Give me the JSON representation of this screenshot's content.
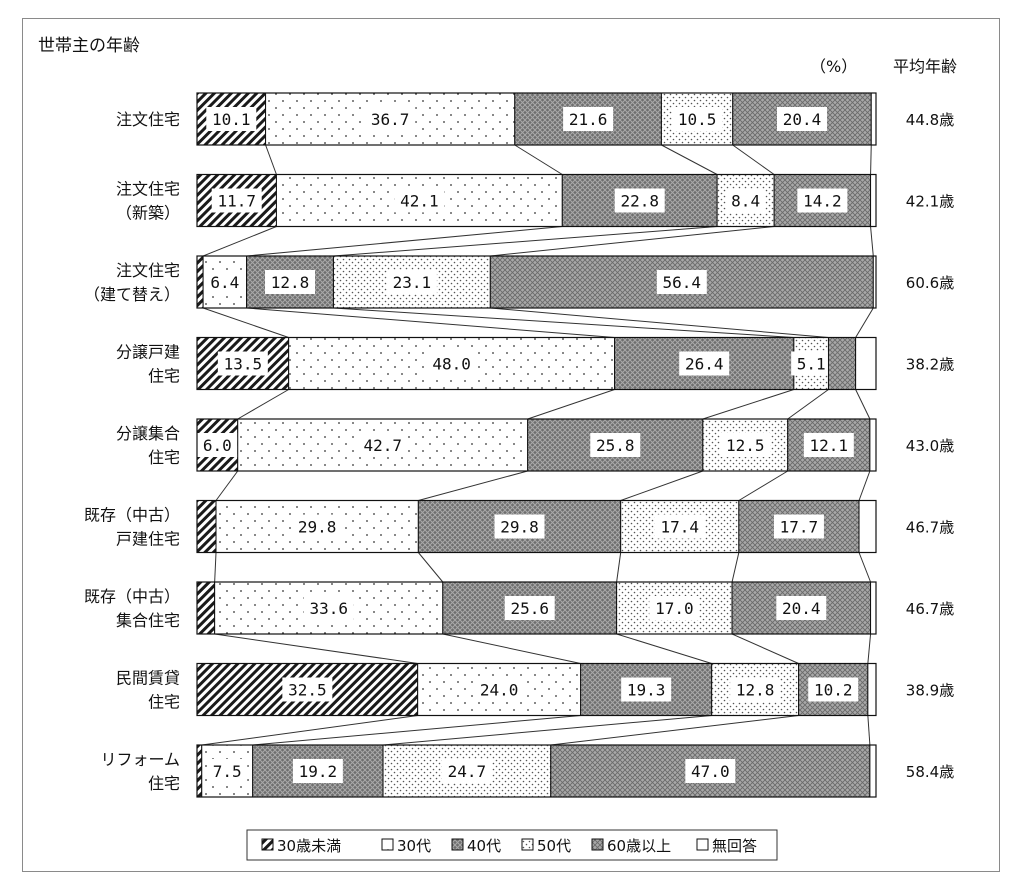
{
  "chart_data": {
    "type": "bar",
    "orientation": "horizontal",
    "stacked": true,
    "percent_stacked": true,
    "title": "世帯主の年齢",
    "unit_label": "（%）",
    "avg_header": "平均年齢",
    "categories": [
      [
        "注文住宅"
      ],
      [
        "注文住宅",
        "（新築）"
      ],
      [
        "注文住宅",
        "（建て替え）"
      ],
      [
        "分譲戸建",
        "住宅"
      ],
      [
        "分譲集合",
        "住宅"
      ],
      [
        "既存（中古）",
        "戸建住宅"
      ],
      [
        "既存（中古）",
        "集合住宅"
      ],
      [
        "民間賃貸",
        "住宅"
      ],
      [
        "リフォーム",
        "住宅"
      ]
    ],
    "series": [
      {
        "name": "30歳未満",
        "values": [
          10.1,
          11.7,
          0.9,
          13.5,
          6.0,
          2.8,
          2.6,
          32.5,
          0.7
        ]
      },
      {
        "name": "30代",
        "values": [
          36.7,
          42.1,
          6.4,
          48.0,
          42.7,
          29.8,
          33.6,
          24.0,
          7.5
        ]
      },
      {
        "name": "40代",
        "values": [
          21.6,
          22.8,
          12.8,
          26.4,
          25.8,
          29.8,
          25.6,
          19.3,
          19.2
        ]
      },
      {
        "name": "50代",
        "values": [
          10.5,
          8.4,
          23.1,
          5.1,
          12.5,
          17.4,
          17.0,
          12.8,
          24.7
        ]
      },
      {
        "name": "60歳以上",
        "values": [
          20.4,
          14.2,
          56.4,
          4.0,
          12.1,
          17.7,
          20.4,
          10.2,
          47.0
        ]
      },
      {
        "name": "無回答",
        "values": [
          0.7,
          0.8,
          0.4,
          3.0,
          0.9,
          2.5,
          0.8,
          1.2,
          0.9
        ]
      }
    ],
    "data_labels": [
      [
        "10.1",
        "36.7",
        "21.6",
        "10.5",
        "20.4",
        ""
      ],
      [
        "11.7",
        "42.1",
        "22.8",
        "8.4",
        "14.2",
        ""
      ],
      [
        "",
        "6.4",
        "12.8",
        "23.1",
        "56.4",
        ""
      ],
      [
        "13.5",
        "48.0",
        "26.4",
        "5.1",
        "",
        ""
      ],
      [
        "6.0",
        "42.7",
        "25.8",
        "12.5",
        "12.1",
        ""
      ],
      [
        "",
        "29.8",
        "29.8",
        "17.4",
        "17.7",
        ""
      ],
      [
        "",
        "33.6",
        "25.6",
        "17.0",
        "20.4",
        ""
      ],
      [
        "32.5",
        "24.0",
        "19.3",
        "12.8",
        "10.2",
        ""
      ],
      [
        "",
        "7.5",
        "19.2",
        "24.7",
        "47.0",
        ""
      ]
    ],
    "average_age": [
      "44.8歳",
      "42.1歳",
      "60.6歳",
      "38.2歳",
      "43.0歳",
      "46.7歳",
      "46.7歳",
      "38.9歳",
      "58.4歳"
    ],
    "xlim": [
      0,
      100
    ],
    "connector_lines": true,
    "legend_position": "bottom"
  }
}
